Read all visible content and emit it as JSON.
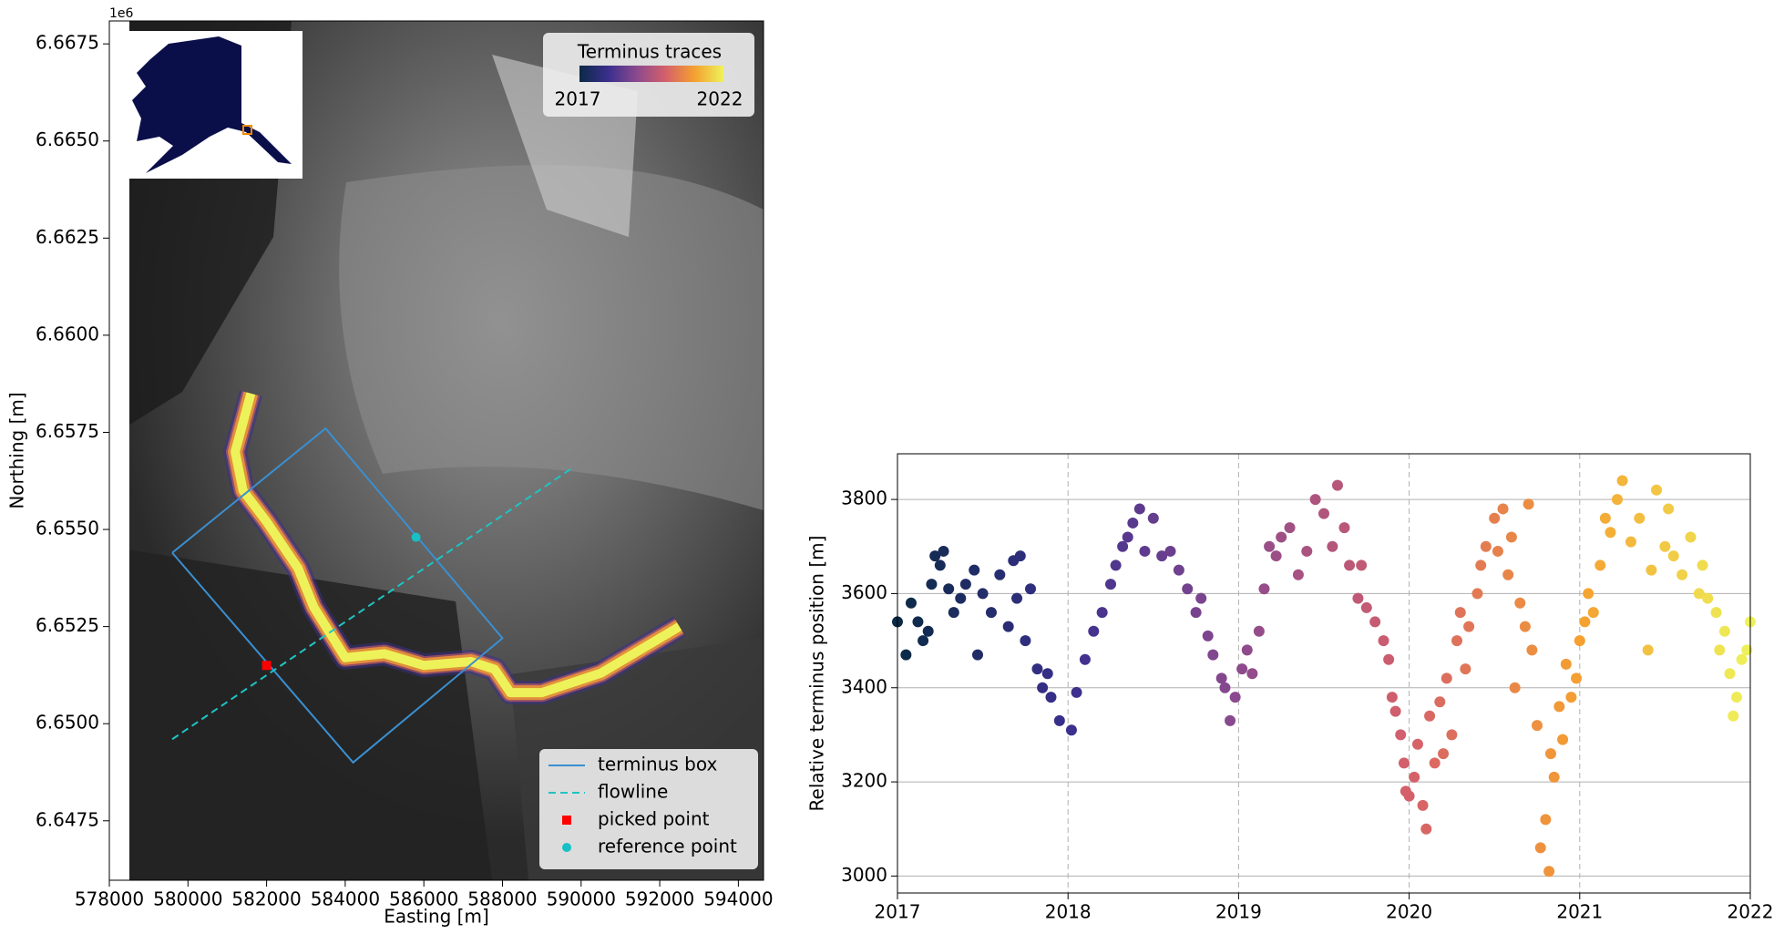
{
  "chart_data": [
    {
      "type": "map",
      "x_label": "Easting [m]",
      "y_label": "Northing [m]",
      "y_offset_label": "1e6",
      "xlim": [
        578000,
        594640
      ],
      "ylim": [
        6645970,
        6668090
      ],
      "xticks": [
        578000,
        580000,
        582000,
        584000,
        586000,
        588000,
        590000,
        592000,
        594000
      ],
      "yticks": [
        {
          "value": 6647500,
          "label": "6.6475"
        },
        {
          "value": 6650000,
          "label": "6.6500"
        },
        {
          "value": 6652500,
          "label": "6.6525"
        },
        {
          "value": 6655000,
          "label": "6.6550"
        },
        {
          "value": 6657500,
          "label": "6.6575"
        },
        {
          "value": 6660000,
          "label": "6.6600"
        },
        {
          "value": 6662500,
          "label": "6.6625"
        },
        {
          "value": 6665000,
          "label": "6.6650"
        },
        {
          "value": 6667500,
          "label": "6.6675"
        }
      ],
      "colorbar_title": "Terminus traces",
      "colorbar_labels": [
        "2017",
        "2022"
      ],
      "colormap": [
        "#0b2a45",
        "#3a2f8e",
        "#8c4a8e",
        "#d5606b",
        "#f5a030",
        "#eef25a"
      ],
      "terminus_trace": {
        "x": [
          581600,
          581200,
          581400,
          582000,
          582800,
          583200,
          584000,
          585000,
          586000,
          587200,
          587800,
          588200,
          589000,
          590500,
          592000,
          592500
        ],
        "y": [
          6658500,
          6657000,
          6656000,
          6655200,
          6654000,
          6653000,
          6651700,
          6651800,
          6651500,
          6651600,
          6651400,
          6650800,
          6650800,
          6651300,
          6652200,
          6652500
        ]
      },
      "series": [
        {
          "name": "terminus box",
          "color": "#3b8fd0",
          "x": [
            579600,
            583500,
            588000,
            584200,
            579600
          ],
          "y": [
            6654400,
            6657600,
            6652200,
            6649000,
            6654400
          ]
        },
        {
          "name": "flowline",
          "color": "#1fc4c4",
          "x": [
            579600,
            589800
          ],
          "y": [
            6649600,
            6656600
          ]
        },
        {
          "name": "picked point",
          "color": "#ff0000",
          "x": [
            582000
          ],
          "y": [
            6651500
          ]
        },
        {
          "name": "reference point",
          "color": "#17c0c6",
          "x": [
            585800
          ],
          "y": [
            6654800
          ]
        }
      ]
    },
    {
      "type": "scatter",
      "y_label": "Relative terminus position [m]",
      "xlim": [
        2017,
        2022
      ],
      "ylim": [
        2964,
        3897
      ],
      "xticks": [
        2017,
        2018,
        2019,
        2020,
        2021,
        2022
      ],
      "yticks": [
        3000,
        3200,
        3400,
        3600,
        3800
      ],
      "grid": true,
      "colormap": [
        "#0b2a45",
        "#3a2f8e",
        "#8c4a8e",
        "#d5606b",
        "#f5a030",
        "#eef25a"
      ],
      "x": [
        2017.0,
        2017.05,
        2017.08,
        2017.12,
        2017.15,
        2017.18,
        2017.2,
        2017.22,
        2017.25,
        2017.27,
        2017.3,
        2017.33,
        2017.37,
        2017.4,
        2017.45,
        2017.47,
        2017.5,
        2017.55,
        2017.6,
        2017.65,
        2017.68,
        2017.7,
        2017.72,
        2017.75,
        2017.78,
        2017.82,
        2017.85,
        2017.88,
        2017.9,
        2017.95,
        2018.02,
        2018.05,
        2018.1,
        2018.15,
        2018.2,
        2018.25,
        2018.28,
        2018.32,
        2018.35,
        2018.38,
        2018.42,
        2018.45,
        2018.5,
        2018.55,
        2018.6,
        2018.65,
        2018.7,
        2018.75,
        2018.78,
        2018.82,
        2018.85,
        2018.9,
        2018.92,
        2018.95,
        2018.98,
        2019.02,
        2019.05,
        2019.08,
        2019.12,
        2019.15,
        2019.18,
        2019.22,
        2019.25,
        2019.3,
        2019.35,
        2019.4,
        2019.45,
        2019.5,
        2019.55,
        2019.58,
        2019.62,
        2019.65,
        2019.7,
        2019.72,
        2019.75,
        2019.8,
        2019.85,
        2019.88,
        2019.9,
        2019.92,
        2019.95,
        2019.97,
        2019.98,
        2020.0,
        2020.03,
        2020.05,
        2020.08,
        2020.1,
        2020.12,
        2020.15,
        2020.18,
        2020.2,
        2020.22,
        2020.25,
        2020.28,
        2020.3,
        2020.33,
        2020.35,
        2020.4,
        2020.42,
        2020.45,
        2020.5,
        2020.52,
        2020.55,
        2020.58,
        2020.6,
        2020.62,
        2020.65,
        2020.68,
        2020.7,
        2020.72,
        2020.75,
        2020.77,
        2020.8,
        2020.82,
        2020.83,
        2020.85,
        2020.88,
        2020.9,
        2020.92,
        2020.95,
        2020.98,
        2021.0,
        2021.03,
        2021.05,
        2021.08,
        2021.12,
        2021.15,
        2021.18,
        2021.22,
        2021.25,
        2021.3,
        2021.35,
        2021.4,
        2021.42,
        2021.45,
        2021.5,
        2021.52,
        2021.55,
        2021.6,
        2021.65,
        2021.7,
        2021.72,
        2021.75,
        2021.8,
        2021.82,
        2021.85,
        2021.88,
        2021.9,
        2021.92,
        2021.95,
        2021.98,
        2022.0
      ],
      "values": [
        3540,
        3470,
        3580,
        3540,
        3500,
        3520,
        3620,
        3680,
        3660,
        3690,
        3610,
        3560,
        3590,
        3620,
        3650,
        3470,
        3600,
        3560,
        3640,
        3530,
        3670,
        3590,
        3680,
        3500,
        3610,
        3440,
        3400,
        3430,
        3380,
        3330,
        3310,
        3390,
        3460,
        3520,
        3560,
        3620,
        3660,
        3700,
        3720,
        3750,
        3780,
        3690,
        3760,
        3680,
        3690,
        3650,
        3610,
        3560,
        3590,
        3510,
        3470,
        3420,
        3400,
        3330,
        3380,
        3440,
        3480,
        3430,
        3520,
        3610,
        3700,
        3680,
        3720,
        3740,
        3640,
        3690,
        3800,
        3770,
        3700,
        3830,
        3740,
        3660,
        3590,
        3660,
        3570,
        3540,
        3500,
        3460,
        3380,
        3350,
        3300,
        3240,
        3180,
        3170,
        3210,
        3280,
        3150,
        3100,
        3340,
        3240,
        3370,
        3260,
        3420,
        3300,
        3500,
        3560,
        3440,
        3530,
        3600,
        3660,
        3700,
        3760,
        3690,
        3780,
        3640,
        3720,
        3400,
        3580,
        3530,
        3790,
        3480,
        3320,
        3060,
        3120,
        3010,
        3260,
        3210,
        3360,
        3290,
        3450,
        3380,
        3420,
        3500,
        3540,
        3600,
        3560,
        3660,
        3760,
        3730,
        3800,
        3840,
        3710,
        3760,
        3480,
        3650,
        3820,
        3700,
        3780,
        3680,
        3640,
        3720,
        3600,
        3660,
        3590,
        3560,
        3480,
        3520,
        3430,
        3340,
        3380,
        3460,
        3480,
        3540
      ]
    }
  ]
}
